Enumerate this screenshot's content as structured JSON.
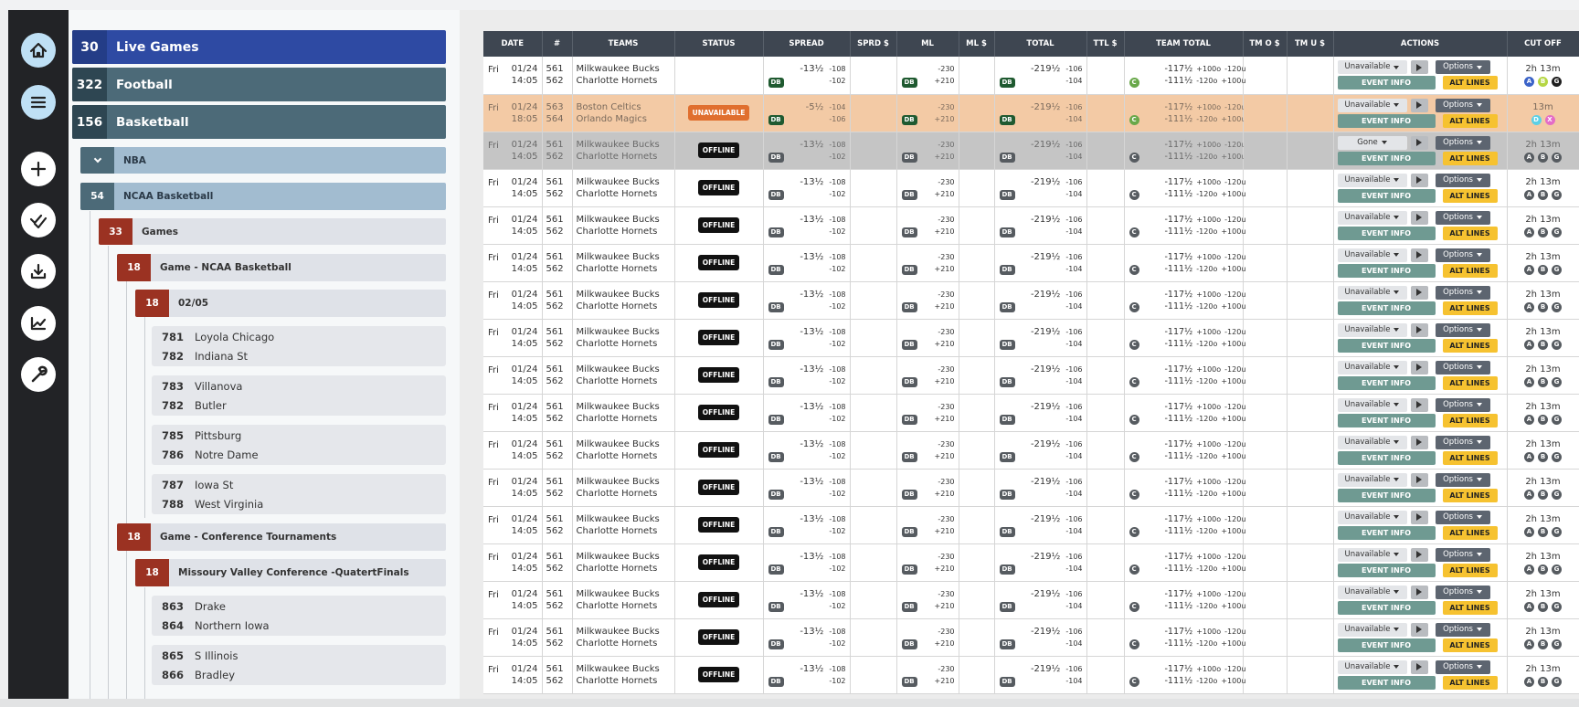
{
  "sidebar": {
    "menu_items": [
      {
        "count": 30,
        "label": "Live Games"
      },
      {
        "count": 322,
        "label": "Football"
      },
      {
        "count": 156,
        "label": "Basketball"
      }
    ],
    "nba": "NBA",
    "ncaa": {
      "count": 54,
      "label": "NCAA Basketball"
    },
    "games": {
      "count": 33,
      "label": "Games"
    },
    "groups": [
      {
        "count": 18,
        "label": "Game - NCAA Basketball",
        "date": {
          "count": 18,
          "label": "02/05"
        },
        "matchups": [
          [
            {
              "rot": 781,
              "team": "Loyola Chicago"
            },
            {
              "rot": 782,
              "team": "Indiana St"
            }
          ],
          [
            {
              "rot": 783,
              "team": "Villanova"
            },
            {
              "rot": 782,
              "team": "Butler"
            }
          ],
          [
            {
              "rot": 785,
              "team": "Pittsburg"
            },
            {
              "rot": 786,
              "team": "Notre Dame"
            }
          ],
          [
            {
              "rot": 787,
              "team": "Iowa St"
            },
            {
              "rot": 788,
              "team": "West Virginia"
            }
          ]
        ]
      },
      {
        "count": 18,
        "label": "Game - Conference Tournaments",
        "date": {
          "count": 18,
          "label": "Missoury Valley Conference -QuatertFinals"
        },
        "matchups": [
          [
            {
              "rot": 863,
              "team": "Drake"
            },
            {
              "rot": 864,
              "team": "Northern Iowa"
            }
          ],
          [
            {
              "rot": 865,
              "team": "S Illinois"
            },
            {
              "rot": 866,
              "team": "Bradley"
            }
          ]
        ]
      }
    ]
  },
  "table": {
    "headers": [
      "DATE",
      "#",
      "TEAMS",
      "STATUS",
      "SPREAD",
      "SPRD $",
      "ML",
      "ML $",
      "TOTAL",
      "TTL $",
      "TEAM TOTAL",
      "TM O $",
      "TM U $",
      "ACTIONS",
      "CUT OFF"
    ],
    "badges": {
      "db": "DB",
      "c": "C"
    },
    "actions": {
      "options": "Options",
      "event_info": "EVENT INFO",
      "alt_lines": "ALT LINES"
    },
    "rows": [
      {
        "day": "Fri",
        "date": "01/24",
        "time": "14:05",
        "rot": [
          561,
          562
        ],
        "teams": [
          "Milkwaukee Bucks",
          "Charlotte Hornets"
        ],
        "spread": [
          "-13½",
          "-108",
          "-102"
        ],
        "ml": [
          "-230",
          "+210"
        ],
        "total": [
          "-219½",
          "-106",
          "-104"
        ],
        "team_total": [
          [
            "-117½",
            "+100o",
            "-120u"
          ],
          [
            "-111½",
            "-120o",
            "+100u"
          ]
        ],
        "state": "Unavailable",
        "cutoff": "2h 13m",
        "cut": [
          "A",
          "B",
          "G"
        ],
        "cut_colors": [
          "#3b63c8",
          "#b5d643",
          "#1f1f1f"
        ]
      },
      {
        "day": "Fri",
        "date": "01/24",
        "time": "18:05",
        "rot": [
          563,
          564
        ],
        "teams": [
          "Boston Celtics",
          "Orlando Magics"
        ],
        "status": "UNAVAILABLE",
        "spread": [
          "-5½",
          "-104",
          "-106"
        ],
        "ml": [
          "-230",
          "+210"
        ],
        "total": [
          "-219½",
          "-106",
          "-104"
        ],
        "team_total": [
          [
            "-117½",
            "+100o",
            "-120u"
          ],
          [
            "-111½",
            "-120o",
            "+100u"
          ]
        ],
        "state": "Unavailable",
        "cutoff": "13m",
        "cut": [
          "D",
          "X"
        ],
        "cut_colors": [
          "#5cd0e6",
          "#e46cc6"
        ]
      },
      {
        "day": "Fri",
        "date": "01/24",
        "time": "14:05",
        "rot": [
          561,
          562
        ],
        "teams": [
          "Milkwaukee Bucks",
          "Charlotte Hornets"
        ],
        "status": "OFFLINE",
        "spread": [
          "-13½",
          "-108",
          "-102"
        ],
        "ml": [
          "-230",
          "+210"
        ],
        "total": [
          "-219½",
          "-106",
          "-104"
        ],
        "team_total": [
          [
            "-117½",
            "+100o",
            "-120u"
          ],
          [
            "-111½",
            "-120o",
            "+100u"
          ]
        ],
        "state": "Gone",
        "cutoff": "2h 13m",
        "cut": [
          "A",
          "B",
          "G"
        ]
      },
      {
        "day": "Fri",
        "date": "01/24",
        "time": "14:05",
        "rot": [
          561,
          562
        ],
        "teams": [
          "Milkwaukee Bucks",
          "Charlotte Hornets"
        ],
        "status": "OFFLINE",
        "spread": [
          "-13½",
          "-108",
          "-102"
        ],
        "ml": [
          "-230",
          "+210"
        ],
        "total": [
          "-219½",
          "-106",
          "-104"
        ],
        "team_total": [
          [
            "-117½",
            "+100o",
            "-120u"
          ],
          [
            "-111½",
            "-120o",
            "+100u"
          ]
        ],
        "state": "Unavailable",
        "cutoff": "2h 13m",
        "cut": [
          "A",
          "B",
          "G"
        ]
      },
      {
        "day": "Fri",
        "date": "01/24",
        "time": "14:05",
        "rot": [
          561,
          562
        ],
        "teams": [
          "Milkwaukee Bucks",
          "Charlotte Hornets"
        ],
        "status": "OFFLINE",
        "spread": [
          "-13½",
          "-108",
          "-102"
        ],
        "ml": [
          "-230",
          "+210"
        ],
        "total": [
          "-219½",
          "-106",
          "-104"
        ],
        "team_total": [
          [
            "-117½",
            "+100o",
            "-120u"
          ],
          [
            "-111½",
            "-120o",
            "+100u"
          ]
        ],
        "state": "Unavailable",
        "cutoff": "2h 13m",
        "cut": [
          "A",
          "B",
          "G"
        ]
      },
      {
        "day": "Fri",
        "date": "01/24",
        "time": "14:05",
        "rot": [
          561,
          562
        ],
        "teams": [
          "Milkwaukee Bucks",
          "Charlotte Hornets"
        ],
        "status": "OFFLINE",
        "spread": [
          "-13½",
          "-108",
          "-102"
        ],
        "ml": [
          "-230",
          "+210"
        ],
        "total": [
          "-219½",
          "-106",
          "-104"
        ],
        "team_total": [
          [
            "-117½",
            "+100o",
            "-120u"
          ],
          [
            "-111½",
            "-120o",
            "+100u"
          ]
        ],
        "state": "Unavailable",
        "cutoff": "2h 13m",
        "cut": [
          "A",
          "B",
          "G"
        ]
      },
      {
        "day": "Fri",
        "date": "01/24",
        "time": "14:05",
        "rot": [
          561,
          562
        ],
        "teams": [
          "Milkwaukee Bucks",
          "Charlotte Hornets"
        ],
        "status": "OFFLINE",
        "spread": [
          "-13½",
          "-108",
          "-102"
        ],
        "ml": [
          "-230",
          "+210"
        ],
        "total": [
          "-219½",
          "-106",
          "-104"
        ],
        "team_total": [
          [
            "-117½",
            "+100o",
            "-120u"
          ],
          [
            "-111½",
            "-120o",
            "+100u"
          ]
        ],
        "state": "Unavailable",
        "cutoff": "2h 13m",
        "cut": [
          "A",
          "B",
          "G"
        ]
      },
      {
        "day": "Fri",
        "date": "01/24",
        "time": "14:05",
        "rot": [
          561,
          562
        ],
        "teams": [
          "Milkwaukee Bucks",
          "Charlotte Hornets"
        ],
        "status": "OFFLINE",
        "spread": [
          "-13½",
          "-108",
          "-102"
        ],
        "ml": [
          "-230",
          "+210"
        ],
        "total": [
          "-219½",
          "-106",
          "-104"
        ],
        "team_total": [
          [
            "-117½",
            "+100o",
            "-120u"
          ],
          [
            "-111½",
            "-120o",
            "+100u"
          ]
        ],
        "state": "Unavailable",
        "cutoff": "2h 13m",
        "cut": [
          "A",
          "B",
          "G"
        ]
      },
      {
        "day": "Fri",
        "date": "01/24",
        "time": "14:05",
        "rot": [
          561,
          562
        ],
        "teams": [
          "Milkwaukee Bucks",
          "Charlotte Hornets"
        ],
        "status": "OFFLINE",
        "spread": [
          "-13½",
          "-108",
          "-102"
        ],
        "ml": [
          "-230",
          "+210"
        ],
        "total": [
          "-219½",
          "-106",
          "-104"
        ],
        "team_total": [
          [
            "-117½",
            "+100o",
            "-120u"
          ],
          [
            "-111½",
            "-120o",
            "+100u"
          ]
        ],
        "state": "Unavailable",
        "cutoff": "2h 13m",
        "cut": [
          "A",
          "B",
          "G"
        ]
      },
      {
        "day": "Fri",
        "date": "01/24",
        "time": "14:05",
        "rot": [
          561,
          562
        ],
        "teams": [
          "Milkwaukee Bucks",
          "Charlotte Hornets"
        ],
        "status": "OFFLINE",
        "spread": [
          "-13½",
          "-108",
          "-102"
        ],
        "ml": [
          "-230",
          "+210"
        ],
        "total": [
          "-219½",
          "-106",
          "-104"
        ],
        "team_total": [
          [
            "-117½",
            "+100o",
            "-120u"
          ],
          [
            "-111½",
            "-120o",
            "+100u"
          ]
        ],
        "state": "Unavailable",
        "cutoff": "2h 13m",
        "cut": [
          "A",
          "B",
          "G"
        ]
      },
      {
        "day": "Fri",
        "date": "01/24",
        "time": "14:05",
        "rot": [
          561,
          562
        ],
        "teams": [
          "Milkwaukee Bucks",
          "Charlotte Hornets"
        ],
        "status": "OFFLINE",
        "spread": [
          "-13½",
          "-108",
          "-102"
        ],
        "ml": [
          "-230",
          "+210"
        ],
        "total": [
          "-219½",
          "-106",
          "-104"
        ],
        "team_total": [
          [
            "-117½",
            "+100o",
            "-120u"
          ],
          [
            "-111½",
            "-120o",
            "+100u"
          ]
        ],
        "state": "Unavailable",
        "cutoff": "2h 13m",
        "cut": [
          "A",
          "B",
          "G"
        ]
      },
      {
        "day": "Fri",
        "date": "01/24",
        "time": "14:05",
        "rot": [
          561,
          562
        ],
        "teams": [
          "Milkwaukee Bucks",
          "Charlotte Hornets"
        ],
        "status": "OFFLINE",
        "spread": [
          "-13½",
          "-108",
          "-102"
        ],
        "ml": [
          "-230",
          "+210"
        ],
        "total": [
          "-219½",
          "-106",
          "-104"
        ],
        "team_total": [
          [
            "-117½",
            "+100o",
            "-120u"
          ],
          [
            "-111½",
            "-120o",
            "+100u"
          ]
        ],
        "state": "Unavailable",
        "cutoff": "2h 13m",
        "cut": [
          "A",
          "B",
          "G"
        ]
      },
      {
        "day": "Fri",
        "date": "01/24",
        "time": "14:05",
        "rot": [
          561,
          562
        ],
        "teams": [
          "Milkwaukee Bucks",
          "Charlotte Hornets"
        ],
        "status": "OFFLINE",
        "spread": [
          "-13½",
          "-108",
          "-102"
        ],
        "ml": [
          "-230",
          "+210"
        ],
        "total": [
          "-219½",
          "-106",
          "-104"
        ],
        "team_total": [
          [
            "-117½",
            "+100o",
            "-120u"
          ],
          [
            "-111½",
            "-120o",
            "+100u"
          ]
        ],
        "state": "Unavailable",
        "cutoff": "2h 13m",
        "cut": [
          "A",
          "B",
          "G"
        ]
      },
      {
        "day": "Fri",
        "date": "01/24",
        "time": "14:05",
        "rot": [
          561,
          562
        ],
        "teams": [
          "Milkwaukee Bucks",
          "Charlotte Hornets"
        ],
        "status": "OFFLINE",
        "spread": [
          "-13½",
          "-108",
          "-102"
        ],
        "ml": [
          "-230",
          "+210"
        ],
        "total": [
          "-219½",
          "-106",
          "-104"
        ],
        "team_total": [
          [
            "-117½",
            "+100o",
            "-120u"
          ],
          [
            "-111½",
            "-120o",
            "+100u"
          ]
        ],
        "state": "Unavailable",
        "cutoff": "2h 13m",
        "cut": [
          "A",
          "B",
          "G"
        ]
      },
      {
        "day": "Fri",
        "date": "01/24",
        "time": "14:05",
        "rot": [
          561,
          562
        ],
        "teams": [
          "Milkwaukee Bucks",
          "Charlotte Hornets"
        ],
        "status": "OFFLINE",
        "spread": [
          "-13½",
          "-108",
          "-102"
        ],
        "ml": [
          "-230",
          "+210"
        ],
        "total": [
          "-219½",
          "-106",
          "-104"
        ],
        "team_total": [
          [
            "-117½",
            "+100o",
            "-120u"
          ],
          [
            "-111½",
            "-120o",
            "+100u"
          ]
        ],
        "state": "Unavailable",
        "cutoff": "2h 13m",
        "cut": [
          "A",
          "B",
          "G"
        ]
      },
      {
        "day": "Fri",
        "date": "01/24",
        "time": "14:05",
        "rot": [
          561,
          562
        ],
        "teams": [
          "Milkwaukee Bucks",
          "Charlotte Hornets"
        ],
        "status": "OFFLINE",
        "spread": [
          "-13½",
          "-108",
          "-102"
        ],
        "ml": [
          "-230",
          "+210"
        ],
        "total": [
          "-219½",
          "-106",
          "-104"
        ],
        "team_total": [
          [
            "-117½",
            "+100o",
            "-120u"
          ],
          [
            "-111½",
            "-120o",
            "+100u"
          ]
        ],
        "state": "Unavailable",
        "cutoff": "2h 13m",
        "cut": [
          "A",
          "B",
          "G"
        ]
      },
      {
        "day": "Fri",
        "date": "01/24",
        "time": "14:05",
        "rot": [
          561,
          562
        ],
        "teams": [
          "Milkwaukee Bucks",
          "Charlotte Hornets"
        ],
        "status": "OFFLINE",
        "spread": [
          "-13½",
          "-108",
          "-102"
        ],
        "ml": [
          "-230",
          "+210"
        ],
        "total": [
          "-219½",
          "-106",
          "-104"
        ],
        "team_total": [
          [
            "-117½",
            "+100o",
            "-120u"
          ],
          [
            "-111½",
            "-120o",
            "+100u"
          ]
        ],
        "state": "Unavailable",
        "cutoff": "2h 13m",
        "cut": [
          "A",
          "B",
          "G"
        ]
      }
    ]
  }
}
